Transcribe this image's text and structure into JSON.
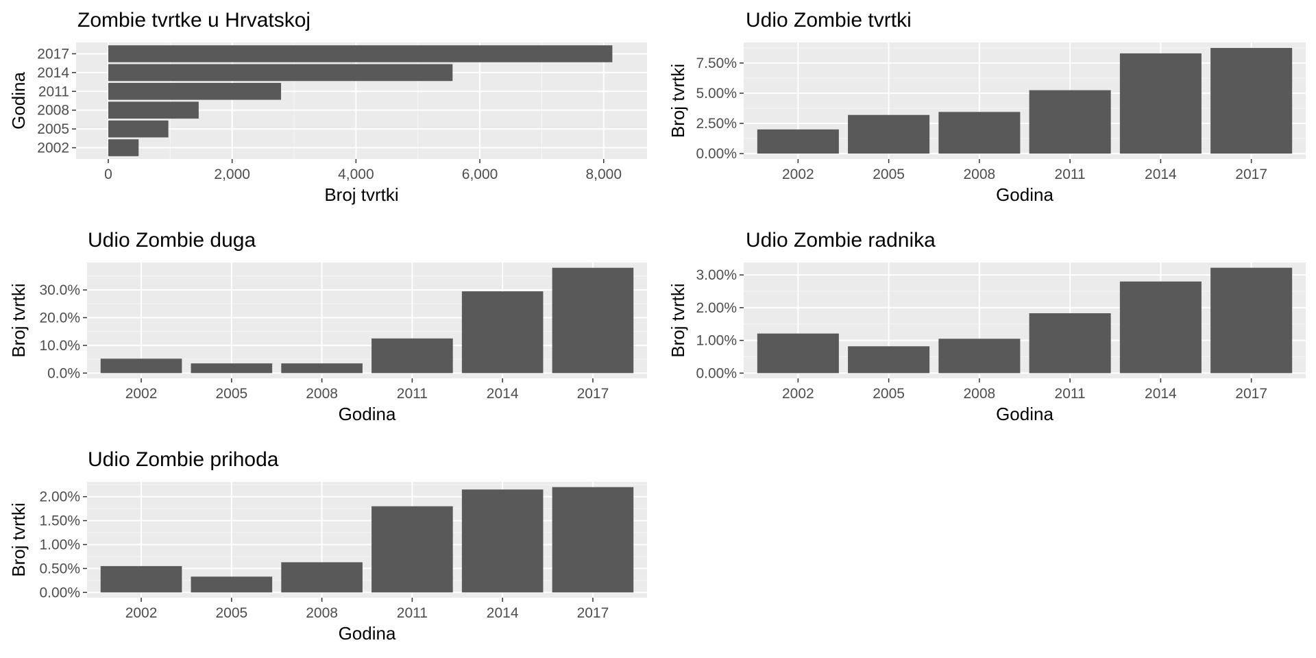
{
  "chart_data": [
    {
      "id": "zombie-count",
      "type": "bar",
      "orientation": "horizontal",
      "title": "Zombie tvrtke u Hrvatskoj",
      "xlabel": "Broj tvrtki",
      "ylabel": "Godina",
      "categories": [
        "2002",
        "2005",
        "2008",
        "2011",
        "2014",
        "2017"
      ],
      "values": [
        490,
        970,
        1460,
        2790,
        5560,
        8140
      ],
      "value_axis": {
        "min": -520,
        "max": 8700,
        "ticks": [
          0,
          2000,
          4000,
          6000,
          8000
        ],
        "tick_labels": [
          "0",
          "2,000",
          "4,000",
          "6,000",
          "8,000"
        ]
      },
      "grid": true
    },
    {
      "id": "share-firms",
      "type": "bar",
      "title": "Udio Zombie tvrtki",
      "xlabel": "Godina",
      "ylabel": "Broj tvrtki",
      "categories": [
        "2002",
        "2005",
        "2008",
        "2011",
        "2014",
        "2017"
      ],
      "values": [
        2.0,
        3.2,
        3.45,
        5.25,
        8.3,
        8.75
      ],
      "unit": "%",
      "value_axis": {
        "min": -0.45,
        "max": 9.2,
        "ticks": [
          0,
          2.5,
          5,
          7.5
        ],
        "tick_labels": [
          "0.00%",
          "2.50%",
          "5.00%",
          "7.50%"
        ]
      },
      "grid": true
    },
    {
      "id": "share-debt",
      "type": "bar",
      "title": "Udio Zombie duga",
      "xlabel": "Godina",
      "ylabel": "Broj tvrtki",
      "categories": [
        "2002",
        "2005",
        "2008",
        "2011",
        "2014",
        "2017"
      ],
      "values": [
        5.2,
        3.5,
        3.5,
        12.5,
        29.5,
        38.0
      ],
      "unit": "%",
      "value_axis": {
        "min": -1.9,
        "max": 39.9,
        "ticks": [
          0,
          10,
          20,
          30
        ],
        "tick_labels": [
          "0.0%",
          "10.0%",
          "20.0%",
          "30.0%"
        ]
      },
      "grid": true
    },
    {
      "id": "share-workers",
      "type": "bar",
      "title": "Udio Zombie radnika",
      "xlabel": "Godina",
      "ylabel": "Broj tvrtki",
      "categories": [
        "2002",
        "2005",
        "2008",
        "2011",
        "2014",
        "2017"
      ],
      "values": [
        1.21,
        0.82,
        1.05,
        1.83,
        2.8,
        3.22
      ],
      "unit": "%",
      "value_axis": {
        "min": -0.16,
        "max": 3.38,
        "ticks": [
          0,
          1,
          2,
          3
        ],
        "tick_labels": [
          "0.00%",
          "1.00%",
          "2.00%",
          "3.00%"
        ]
      },
      "grid": true
    },
    {
      "id": "share-revenue",
      "type": "bar",
      "title": "Udio Zombie prihoda",
      "xlabel": "Godina",
      "ylabel": "Broj tvrtki",
      "categories": [
        "2002",
        "2005",
        "2008",
        "2011",
        "2014",
        "2017"
      ],
      "values": [
        0.55,
        0.33,
        0.63,
        1.8,
        2.15,
        2.2
      ],
      "unit": "%",
      "value_axis": {
        "min": -0.11,
        "max": 2.31,
        "ticks": [
          0,
          0.5,
          1,
          1.5,
          2
        ],
        "tick_labels": [
          "0.00%",
          "0.50%",
          "1.00%",
          "1.50%",
          "2.00%"
        ]
      },
      "grid": true
    }
  ],
  "colors": {
    "bar": "#595959",
    "panel_background": "#ebebeb",
    "grid_major": "#ffffff",
    "tick_text": "#4d4d4d",
    "tick_mark": "#333333"
  }
}
